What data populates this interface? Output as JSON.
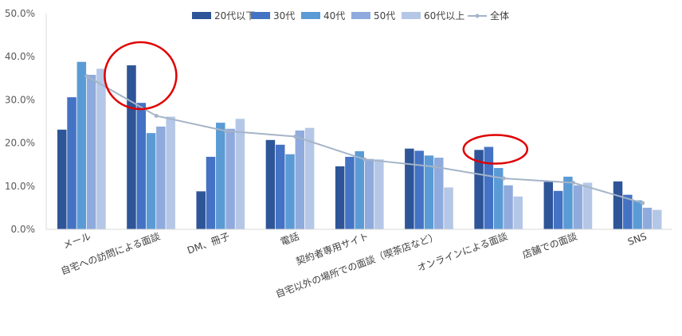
{
  "chart_data": {
    "type": "bar",
    "title": "",
    "xlabel": "",
    "ylabel": "",
    "ylim": [
      0,
      50
    ],
    "y_ticks": [
      "0.0%",
      "10.0%",
      "20.0%",
      "30.0%",
      "40.0%",
      "50.0%"
    ],
    "grid": false,
    "legend_position": "top",
    "categories": [
      "メール",
      "自宅への訪問による面談",
      "DM、冊子",
      "電話",
      "契約者専用サイト",
      "自宅以外の場所での面談（喫茶店など）",
      "オンラインによる面談",
      "店舗での面談",
      "SNS"
    ],
    "series": [
      {
        "name": "20代以下",
        "type": "bar",
        "color": "#2e5597",
        "values": [
          23.1,
          38.0,
          8.8,
          20.7,
          14.6,
          18.7,
          18.4,
          11.0,
          11.1
        ]
      },
      {
        "name": "30代",
        "type": "bar",
        "color": "#4472c4",
        "values": [
          30.6,
          29.3,
          16.8,
          19.6,
          16.8,
          18.2,
          19.1,
          8.9,
          8.0
        ]
      },
      {
        "name": "40代",
        "type": "bar",
        "color": "#5b9bd5",
        "values": [
          38.8,
          22.3,
          24.7,
          17.4,
          18.1,
          17.1,
          14.2,
          12.2,
          6.7
        ]
      },
      {
        "name": "50代",
        "type": "bar",
        "color": "#8faadc",
        "values": [
          35.8,
          23.8,
          23.3,
          22.9,
          16.3,
          16.6,
          10.2,
          10.2,
          5.0
        ]
      },
      {
        "name": "60代以上",
        "type": "bar",
        "color": "#b4c7e7",
        "values": [
          37.2,
          26.1,
          25.6,
          23.5,
          16.2,
          9.7,
          7.6,
          10.8,
          4.5
        ]
      },
      {
        "name": "全体",
        "type": "line",
        "color": "#a5b4c8",
        "values": [
          35.5,
          26.3,
          22.8,
          21.5,
          16.2,
          14.5,
          11.8,
          10.8,
          6.1
        ]
      }
    ],
    "annotations": [
      {
        "type": "ellipse",
        "color": "#e00000",
        "category": "自宅への訪問による面談",
        "target_series": "20代以下"
      },
      {
        "type": "ellipse",
        "color": "#e00000",
        "category": "オンラインによる面談",
        "target_series": "30代"
      }
    ]
  }
}
